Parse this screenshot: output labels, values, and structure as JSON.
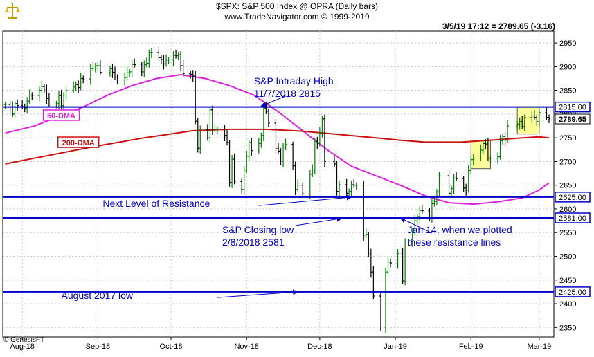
{
  "header": {
    "line1": "$SPX:  S&P 500 Index @ OPRA  (Daily bars)",
    "line2": "www.TradeNavigator.com © 1999-2019",
    "readout": "3/5/19 17:12 = 2789.65 (-3.16)",
    "copyright": "© GenesisFT"
  },
  "colors": {
    "axis": "#000000",
    "grid": "#c8c8c8",
    "resistance": "#0000c8",
    "ma50": "#e020e0",
    "ma200": "#cc1010",
    "annotation": "#0000c8",
    "highlight": "#ffff99",
    "price_up": "#008000",
    "price_down": "#000000"
  },
  "chart_data": {
    "type": "candlestick",
    "ylim": [
      2330,
      2975
    ],
    "y_ticks": [
      2350,
      2400,
      2450,
      2500,
      2550,
      2600,
      2650,
      2700,
      2750,
      2800,
      2850,
      2900,
      2950
    ],
    "x_ticks": [
      "Aug-18",
      "Sep-18",
      "Oct-18",
      "Nov-18",
      "Dec-18",
      "Jan-19",
      "Feb-19",
      "Mar-19"
    ],
    "x_tick_days": [
      0,
      31,
      61,
      92,
      122,
      153,
      184,
      212
    ],
    "x_range_days": [
      -8,
      218
    ],
    "price_label": "2789.65",
    "price_label_value": 2789.65,
    "closes": [
      [
        -7,
        2820
      ],
      [
        -5,
        2815
      ],
      [
        -4,
        2800
      ],
      [
        -3,
        2822
      ],
      [
        -2,
        2818
      ],
      [
        0,
        2816
      ],
      [
        1,
        2813
      ],
      [
        2,
        2827
      ],
      [
        3,
        2840
      ],
      [
        4,
        2839
      ],
      [
        7,
        2850
      ],
      [
        8,
        2858
      ],
      [
        9,
        2853
      ],
      [
        10,
        2833
      ],
      [
        11,
        2821
      ],
      [
        14,
        2822
      ],
      [
        15,
        2839
      ],
      [
        16,
        2818
      ],
      [
        17,
        2840
      ],
      [
        18,
        2850
      ],
      [
        21,
        2857
      ],
      [
        22,
        2862
      ],
      [
        23,
        2856
      ],
      [
        24,
        2875
      ],
      [
        25,
        2874
      ],
      [
        28,
        2896
      ],
      [
        29,
        2897
      ],
      [
        30,
        2902
      ],
      [
        31,
        2902
      ],
      [
        32,
        2888
      ],
      [
        36,
        2896
      ],
      [
        37,
        2888
      ],
      [
        38,
        2878
      ],
      [
        39,
        2872
      ],
      [
        42,
        2877
      ],
      [
        43,
        2887
      ],
      [
        44,
        2889
      ],
      [
        45,
        2905
      ],
      [
        46,
        2904
      ],
      [
        49,
        2889
      ],
      [
        50,
        2904
      ],
      [
        51,
        2907
      ],
      [
        52,
        2930
      ],
      [
        53,
        2930
      ],
      [
        56,
        2919
      ],
      [
        57,
        2915
      ],
      [
        58,
        2906
      ],
      [
        59,
        2914
      ],
      [
        60,
        2914
      ],
      [
        62,
        2924
      ],
      [
        63,
        2923
      ],
      [
        64,
        2925
      ],
      [
        65,
        2902
      ],
      [
        66,
        2885
      ],
      [
        69,
        2884
      ],
      [
        70,
        2880
      ],
      [
        71,
        2785
      ],
      [
        72,
        2728
      ],
      [
        73,
        2767
      ],
      [
        76,
        2750
      ],
      [
        77,
        2809
      ],
      [
        78,
        2768
      ],
      [
        79,
        2768
      ],
      [
        80,
        2768
      ],
      [
        83,
        2755
      ],
      [
        84,
        2740
      ],
      [
        85,
        2656
      ],
      [
        86,
        2705
      ],
      [
        87,
        2658
      ],
      [
        90,
        2641
      ],
      [
        91,
        2682
      ],
      [
        92,
        2711
      ],
      [
        93,
        2740
      ],
      [
        94,
        2723
      ],
      [
        97,
        2738
      ],
      [
        98,
        2755
      ],
      [
        99,
        2813
      ],
      [
        100,
        2806
      ],
      [
        101,
        2781
      ],
      [
        104,
        2727
      ],
      [
        105,
        2722
      ],
      [
        106,
        2701
      ],
      [
        107,
        2730
      ],
      [
        108,
        2736
      ],
      [
        111,
        2691
      ],
      [
        112,
        2641
      ],
      [
        113,
        2650
      ],
      [
        115,
        2632
      ],
      [
        118,
        2673
      ],
      [
        119,
        2682
      ],
      [
        120,
        2743
      ],
      [
        121,
        2738
      ],
      [
        122,
        2760
      ],
      [
        123,
        2790
      ],
      [
        124,
        2700
      ],
      [
        128,
        2695
      ],
      [
        129,
        2637
      ],
      [
        130,
        2651
      ],
      [
        133,
        2633
      ],
      [
        134,
        2637
      ],
      [
        135,
        2651
      ],
      [
        136,
        2650
      ],
      [
        137,
        2650
      ],
      [
        140,
        2545
      ],
      [
        141,
        2546
      ],
      [
        142,
        2507
      ],
      [
        143,
        2467
      ],
      [
        144,
        2416
      ],
      [
        147,
        2351
      ],
      [
        149,
        2467
      ],
      [
        150,
        2488
      ],
      [
        151,
        2486
      ],
      [
        154,
        2506
      ],
      [
        156,
        2448
      ],
      [
        157,
        2532
      ],
      [
        160,
        2550
      ],
      [
        161,
        2575
      ],
      [
        162,
        2584
      ],
      [
        163,
        2597
      ],
      [
        164,
        2596
      ],
      [
        167,
        2583
      ],
      [
        168,
        2611
      ],
      [
        169,
        2616
      ],
      [
        170,
        2636
      ],
      [
        171,
        2670
      ],
      [
        175,
        2633
      ],
      [
        176,
        2643
      ],
      [
        177,
        2665
      ],
      [
        178,
        2664
      ],
      [
        181,
        2644
      ],
      [
        182,
        2640
      ],
      [
        183,
        2681
      ],
      [
        184,
        2704
      ],
      [
        185,
        2707
      ],
      [
        188,
        2724
      ],
      [
        189,
        2738
      ],
      [
        190,
        2737
      ],
      [
        191,
        2707
      ],
      [
        192,
        2707
      ],
      [
        195,
        2710
      ],
      [
        196,
        2744
      ],
      [
        197,
        2753
      ],
      [
        198,
        2745
      ],
      [
        199,
        2775
      ],
      [
        203,
        2779
      ],
      [
        204,
        2784
      ],
      [
        205,
        2774
      ],
      [
        206,
        2793
      ],
      [
        209,
        2796
      ],
      [
        210,
        2793
      ],
      [
        211,
        2784
      ],
      [
        212,
        2803
      ],
      [
        215,
        2793
      ],
      [
        216,
        2790
      ]
    ],
    "series": [
      {
        "name": "50-DMA",
        "points": [
          [
            -7,
            2760
          ],
          [
            5,
            2775
          ],
          [
            15,
            2795
          ],
          [
            25,
            2815
          ],
          [
            35,
            2840
          ],
          [
            45,
            2860
          ],
          [
            55,
            2875
          ],
          [
            65,
            2883
          ],
          [
            75,
            2875
          ],
          [
            85,
            2860
          ],
          [
            95,
            2840
          ],
          [
            105,
            2805
          ],
          [
            115,
            2765
          ],
          [
            125,
            2725
          ],
          [
            135,
            2690
          ],
          [
            145,
            2670
          ],
          [
            155,
            2650
          ],
          [
            165,
            2628
          ],
          [
            175,
            2613
          ],
          [
            185,
            2610
          ],
          [
            195,
            2615
          ],
          [
            205,
            2623
          ],
          [
            212,
            2640
          ],
          [
            216,
            2655
          ]
        ]
      },
      {
        "name": "200-DMA",
        "points": [
          [
            -7,
            2695
          ],
          [
            10,
            2712
          ],
          [
            30,
            2732
          ],
          [
            50,
            2750
          ],
          [
            70,
            2765
          ],
          [
            85,
            2768
          ],
          [
            100,
            2768
          ],
          [
            115,
            2764
          ],
          [
            130,
            2757
          ],
          [
            145,
            2750
          ],
          [
            155,
            2745
          ],
          [
            165,
            2741
          ],
          [
            180,
            2741
          ],
          [
            195,
            2746
          ],
          [
            205,
            2750
          ],
          [
            212,
            2752
          ],
          [
            216,
            2750
          ]
        ]
      }
    ],
    "resistance_lines": [
      {
        "value": 2815,
        "label": "2815.00"
      },
      {
        "value": 2625,
        "label": "2625.00"
      },
      {
        "value": 2581,
        "label": "2581.00"
      },
      {
        "value": 2425,
        "label": "2425.00"
      }
    ],
    "ma_labels": [
      {
        "text": "50-DMA",
        "day": 16,
        "value": 2797,
        "series": "50-DMA"
      },
      {
        "text": "200-DMA",
        "day": 23,
        "value": 2740,
        "series": "200-DMA"
      }
    ],
    "annotations": [
      {
        "lines": [
          "S&P Intraday High",
          "11/7/2018 2815"
        ],
        "day": 95,
        "value": 2863,
        "arrow_from": [
          108,
          2838
        ],
        "arrow_to": [
          98,
          2817
        ]
      },
      {
        "lines": [
          "Next Level of Resistance"
        ],
        "day": 33,
        "value": 2604,
        "arrow_from": [
          97,
          2607
        ],
        "arrow_to": [
          135,
          2625
        ]
      },
      {
        "lines": [
          "S&P Closing low",
          "2/8/2018 2581"
        ],
        "day": 82,
        "value": 2549,
        "arrow_from": [
          112,
          2565
        ],
        "arrow_to": [
          131,
          2580
        ]
      },
      {
        "lines": [
          "Jan 14, when we plotted",
          "these resistance lines"
        ],
        "day": 158,
        "value": 2549,
        "arrow_from": [
          168,
          2549
        ],
        "arrow_to": [
          155,
          2581
        ]
      },
      {
        "lines": [
          "August 2017 low"
        ],
        "day": 16,
        "value": 2410,
        "arrow_from": [
          80,
          2413
        ],
        "arrow_to": [
          113,
          2425
        ]
      }
    ],
    "highlight_boxes": [
      {
        "day_range": [
          184,
          192
        ],
        "value_range": [
          2685,
          2745
        ]
      },
      {
        "day_range": [
          203,
          212
        ],
        "value_range": [
          2758,
          2815
        ]
      }
    ]
  }
}
